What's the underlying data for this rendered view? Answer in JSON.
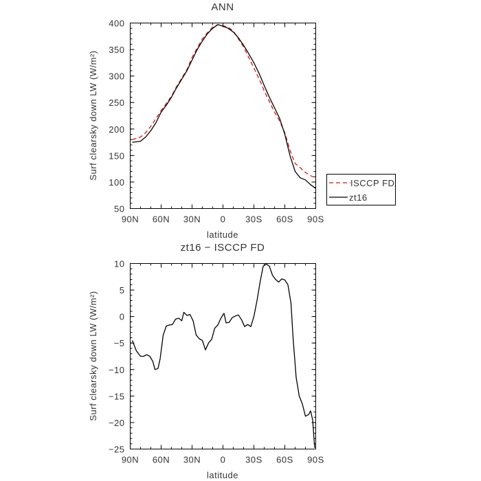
{
  "chart_data": [
    {
      "type": "line",
      "title": "ANN",
      "xlabel": "latitude",
      "ylabel": "Surf clearsky down LW (W/m²)",
      "xlim": [
        90,
        -90
      ],
      "ylim": [
        50,
        400
      ],
      "x_ticks": [
        90,
        60,
        30,
        0,
        -30,
        -60,
        -90
      ],
      "x_tick_labels": [
        "90N",
        "60N",
        "30N",
        "0",
        "30S",
        "60S",
        "90S"
      ],
      "y_ticks": [
        50,
        100,
        150,
        200,
        250,
        300,
        350,
        400
      ],
      "y_tick_labels": [
        "50",
        "100",
        "150",
        "200",
        "250",
        "300",
        "350",
        "400"
      ],
      "legend_position": "outside-right",
      "series": [
        {
          "name": "ISCCP FD",
          "color": "#dd1111",
          "dash": "dashed",
          "x": [
            88,
            80,
            75,
            70,
            65,
            60,
            55,
            50,
            45,
            40,
            35,
            30,
            25,
            20,
            15,
            10,
            5,
            0,
            -5,
            -10,
            -15,
            -20,
            -25,
            -30,
            -35,
            -40,
            -45,
            -50,
            -55,
            -60,
            -65,
            -70,
            -75,
            -80,
            -85,
            -90
          ],
          "y": [
            180,
            185,
            193,
            205,
            220,
            235,
            248,
            262,
            280,
            296,
            312,
            335,
            353,
            370,
            382,
            392,
            397,
            395,
            392,
            385,
            370,
            355,
            335,
            315,
            295,
            272,
            252,
            232,
            215,
            193,
            160,
            135,
            127,
            118,
            112,
            108
          ]
        },
        {
          "name": "zt16",
          "color": "#000000",
          "dash": "solid",
          "x": [
            88,
            80,
            75,
            70,
            65,
            60,
            55,
            50,
            45,
            40,
            35,
            30,
            25,
            20,
            15,
            10,
            5,
            0,
            -5,
            -10,
            -15,
            -20,
            -25,
            -30,
            -35,
            -40,
            -45,
            -50,
            -55,
            -60,
            -65,
            -70,
            -75,
            -80,
            -85,
            -90
          ],
          "y": [
            175,
            177,
            185,
            197,
            212,
            232,
            245,
            260,
            278,
            294,
            310,
            330,
            350,
            366,
            380,
            390,
            397,
            394,
            390,
            383,
            372,
            358,
            342,
            325,
            305,
            282,
            260,
            240,
            220,
            190,
            150,
            120,
            108,
            104,
            95,
            88
          ]
        }
      ]
    },
    {
      "type": "line",
      "title": "zt16 − ISCCP FD",
      "xlabel": "latitude",
      "ylabel": "Surf clearsky down LW (W/m²)",
      "xlim": [
        90,
        -90
      ],
      "ylim": [
        -25,
        10
      ],
      "x_ticks": [
        90,
        60,
        30,
        0,
        -30,
        -60,
        -90
      ],
      "x_tick_labels": [
        "90N",
        "60N",
        "30N",
        "0",
        "30S",
        "60S",
        "90S"
      ],
      "y_ticks": [
        -25,
        -20,
        -15,
        -10,
        -5,
        0,
        5,
        10
      ],
      "y_tick_labels": [
        "−25",
        "−20",
        "−15",
        "−10",
        "−5",
        "0",
        "5",
        "10"
      ],
      "series": [
        {
          "color": "#000000",
          "dash": "solid",
          "x": [
            88,
            84,
            80,
            77,
            74,
            71,
            68,
            66,
            63,
            61,
            58,
            55,
            52,
            49,
            46,
            43,
            40,
            38,
            35,
            32,
            29,
            26,
            23,
            20,
            17,
            14,
            11,
            8,
            5,
            2,
            -1,
            -3,
            -6,
            -9,
            -12,
            -15,
            -18,
            -21,
            -24,
            -27,
            -30,
            -33,
            -36,
            -39,
            -42,
            -45,
            -48,
            -51,
            -54,
            -57,
            -60,
            -63,
            -66,
            -68,
            -71,
            -74,
            -77,
            -80,
            -83,
            -85,
            -87,
            -89
          ],
          "y": [
            -4.5,
            -6.5,
            -7.5,
            -7.5,
            -7.2,
            -7.5,
            -8.5,
            -10.0,
            -9.8,
            -8.0,
            -3.5,
            -1.8,
            -1.6,
            -1.5,
            -0.5,
            -0.3,
            -0.8,
            0.8,
            0.2,
            0.4,
            -0.8,
            -3.5,
            -4.2,
            -4.5,
            -6.3,
            -5.0,
            -4.3,
            -2.2,
            -1.6,
            -0.3,
            0.6,
            -1.2,
            -1.1,
            -0.2,
            0.1,
            0.3,
            -0.6,
            -1.9,
            -1.5,
            -1.9,
            0.0,
            3.0,
            6.5,
            9.5,
            9.9,
            9.5,
            7.8,
            7.0,
            6.5,
            7.1,
            6.9,
            6.0,
            2.5,
            -4.0,
            -11.5,
            -15.0,
            -16.5,
            -18.8,
            -18.5,
            -17.8,
            -19.5,
            -24.8
          ]
        }
      ]
    }
  ]
}
